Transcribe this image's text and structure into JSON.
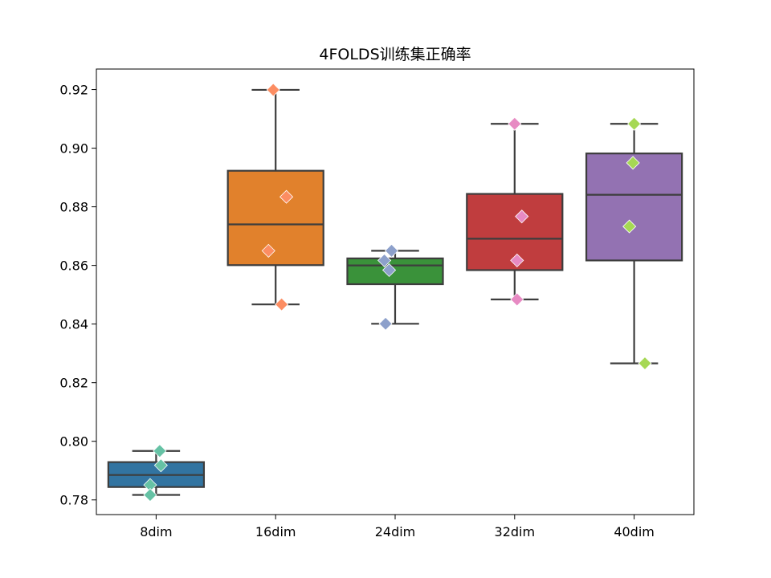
{
  "chart_data": {
    "type": "box",
    "title": "4FOLDS训练集正确率",
    "xlabel": "",
    "ylabel": "",
    "ylim": [
      0.775,
      0.927
    ],
    "yticks": [
      0.78,
      0.8,
      0.82,
      0.84,
      0.86,
      0.88,
      0.9,
      0.92
    ],
    "ytick_labels": [
      "0.78",
      "0.80",
      "0.82",
      "0.84",
      "0.86",
      "0.88",
      "0.90",
      "0.92"
    ],
    "categories": [
      "8dim",
      "16dim",
      "24dim",
      "32dim",
      "40dim"
    ],
    "grid": false,
    "boxes": [
      {
        "category": "8dim",
        "whisker_low": 0.7817,
        "q1": 0.7844,
        "median": 0.7885,
        "q3": 0.7929,
        "whisker_high": 0.7967,
        "box_color": "#3274a1"
      },
      {
        "category": "16dim",
        "whisker_low": 0.8467,
        "q1": 0.8601,
        "median": 0.874,
        "q3": 0.8923,
        "whisker_high": 0.9199,
        "box_color": "#e1812c"
      },
      {
        "category": "24dim",
        "whisker_low": 0.8401,
        "q1": 0.8536,
        "median": 0.86,
        "q3": 0.8624,
        "whisker_high": 0.865,
        "box_color": "#3a923a"
      },
      {
        "category": "32dim",
        "whisker_low": 0.8484,
        "q1": 0.8584,
        "median": 0.8691,
        "q3": 0.8844,
        "whisker_high": 0.9083,
        "box_color": "#c03d3e"
      },
      {
        "category": "40dim",
        "whisker_low": 0.8266,
        "q1": 0.8617,
        "median": 0.8841,
        "q3": 0.8982,
        "whisker_high": 0.9083,
        "box_color": "#9372b2"
      }
    ],
    "points": [
      {
        "category": "8dim",
        "values": [
          0.7967,
          0.7918,
          0.7851,
          0.7817
        ],
        "offsets": [
          0.03,
          0.04,
          -0.05,
          -0.05
        ],
        "color": "#66c2a5"
      },
      {
        "category": "16dim",
        "values": [
          0.9199,
          0.8834,
          0.865,
          0.8467
        ],
        "offsets": [
          -0.02,
          0.09,
          -0.06,
          0.05
        ],
        "color": "#fc8d62"
      },
      {
        "category": "24dim",
        "values": [
          0.865,
          0.8617,
          0.8584,
          0.8401
        ],
        "offsets": [
          -0.03,
          -0.09,
          -0.05,
          -0.08
        ],
        "color": "#8da0cb"
      },
      {
        "category": "32dim",
        "values": [
          0.9083,
          0.8767,
          0.8617,
          0.8484
        ],
        "offsets": [
          0.0,
          0.06,
          0.02,
          0.02
        ],
        "color": "#e78ac3"
      },
      {
        "category": "40dim",
        "values": [
          0.9083,
          0.895,
          0.8733,
          0.8266
        ],
        "offsets": [
          0.0,
          -0.01,
          -0.04,
          0.09
        ],
        "color": "#a6d854"
      }
    ],
    "line_color": "#3d3d3d",
    "axis_color": "#000000"
  }
}
